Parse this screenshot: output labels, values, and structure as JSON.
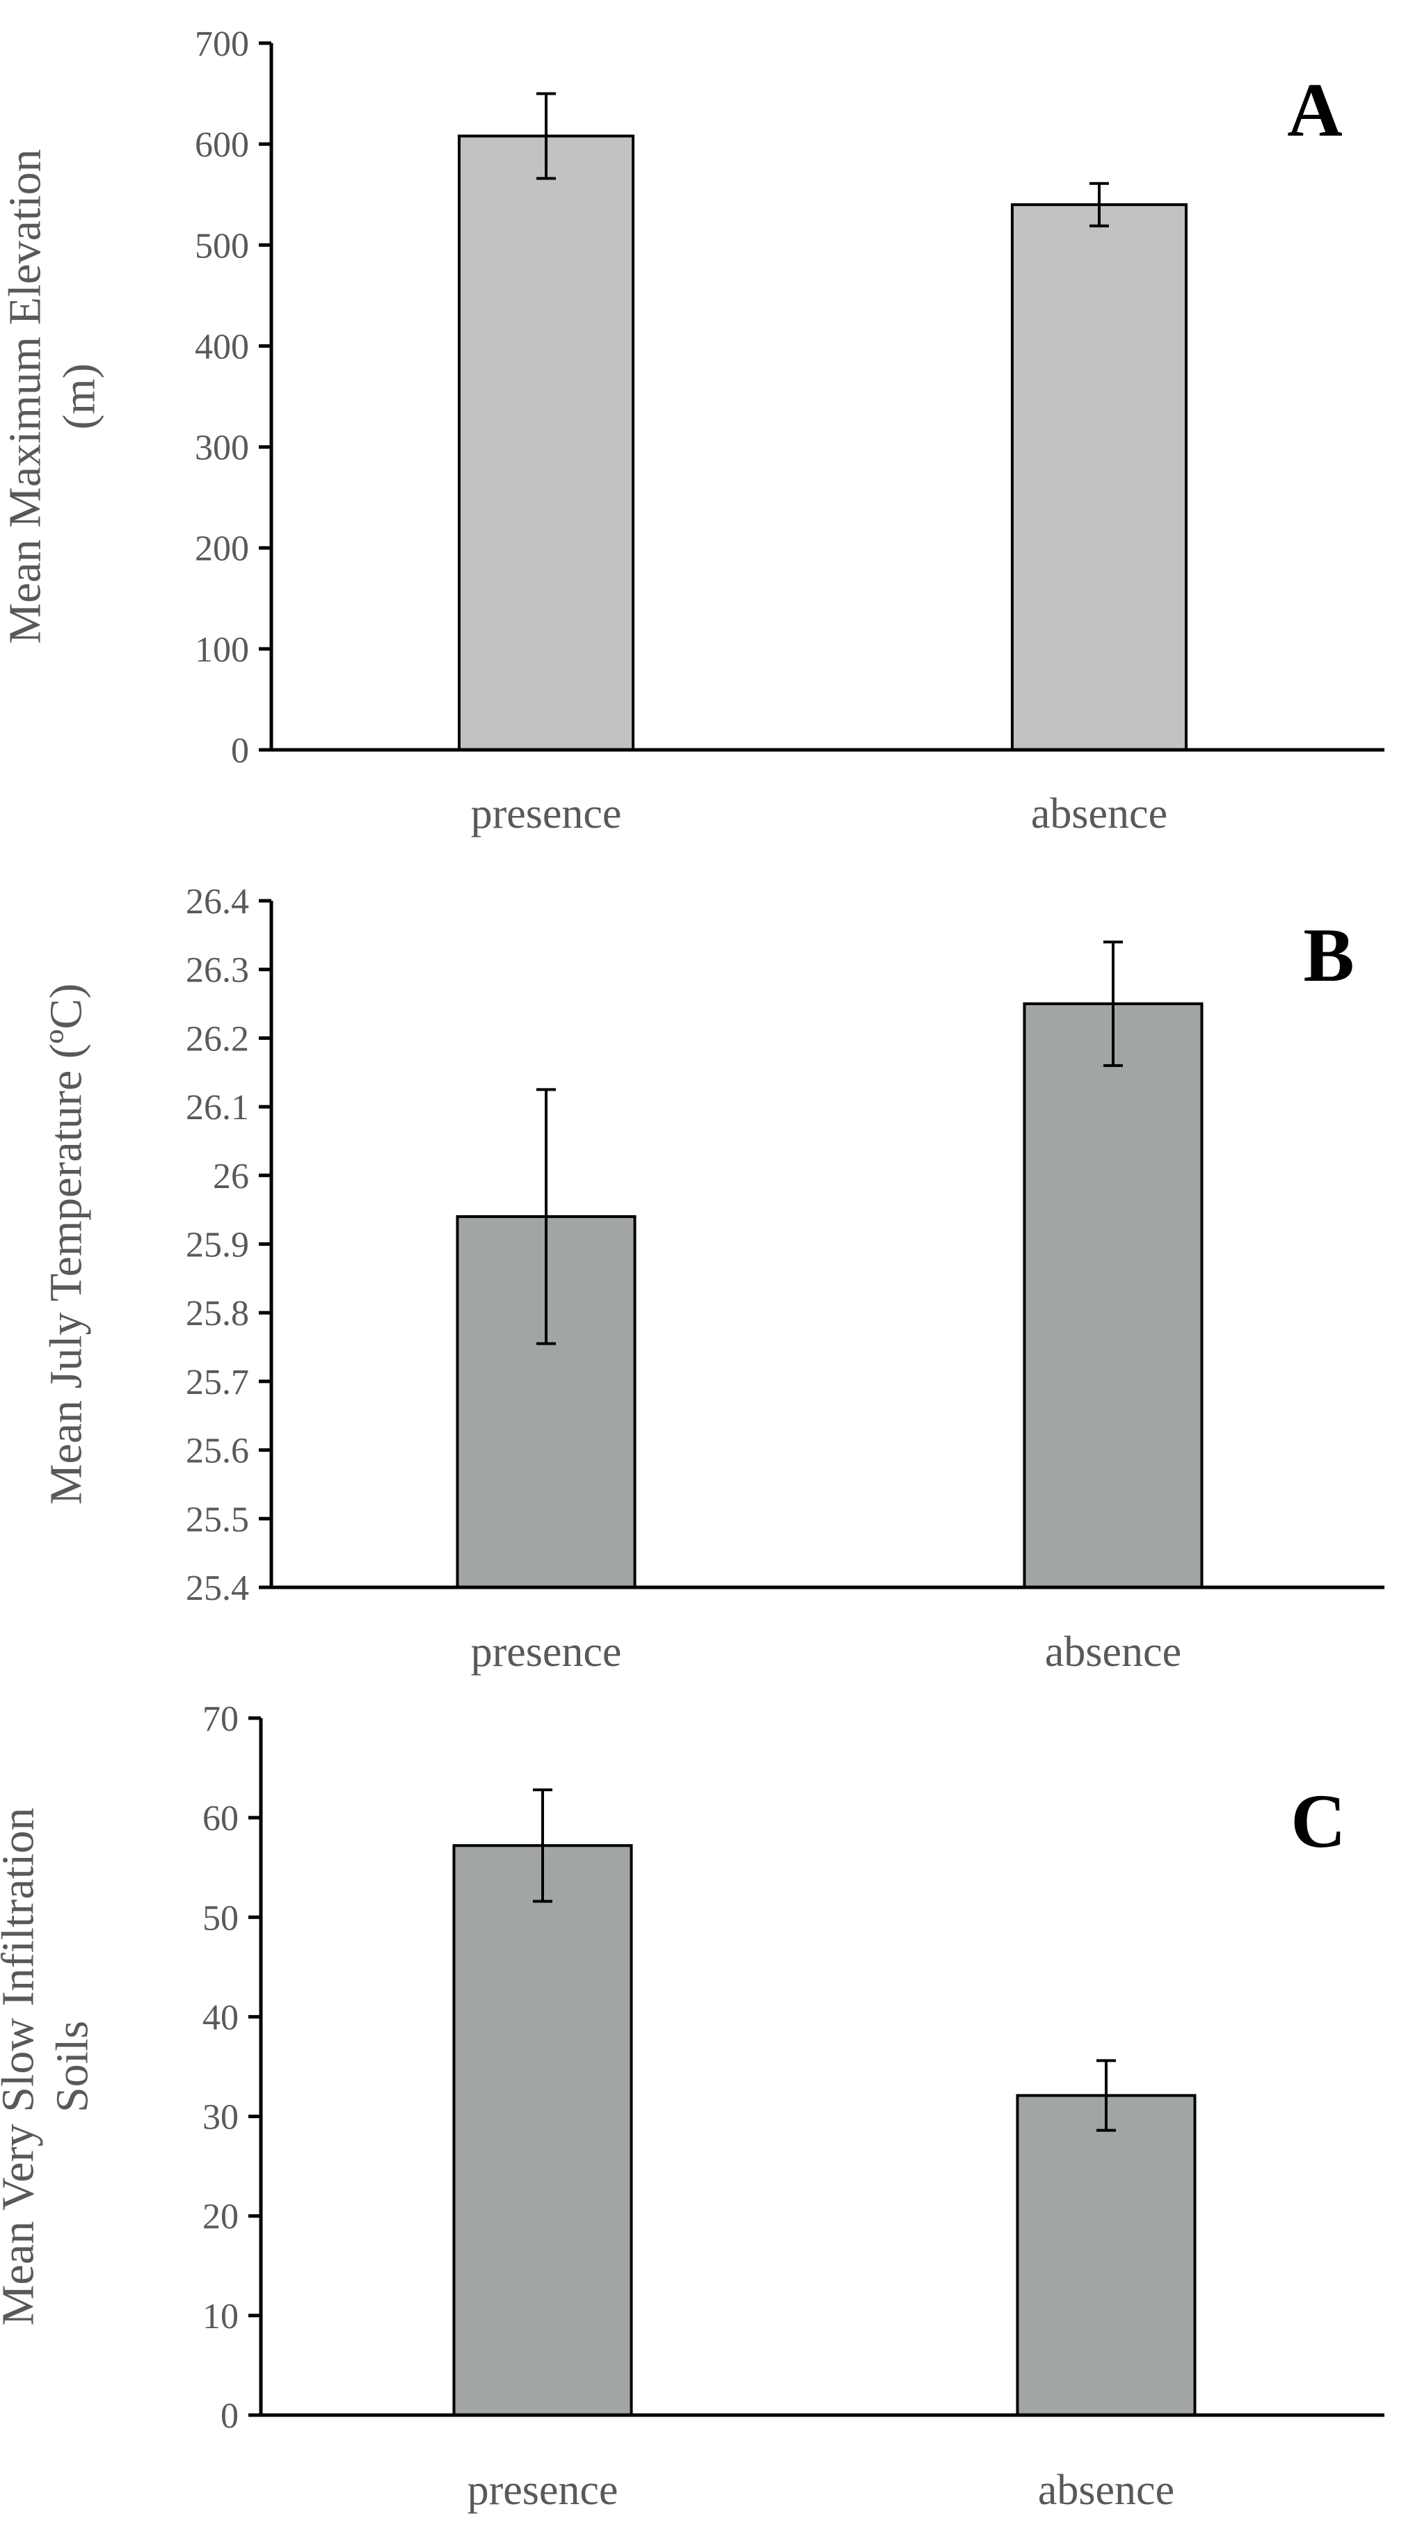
{
  "colors": {
    "bar_A": "#c0c3bf",
    "bar_BC": "#a2a6a2",
    "axis": "#000000",
    "text": "#595959"
  },
  "chart_data": [
    {
      "type": "bar",
      "panel": "A",
      "ylabel": [
        "Mean Maximum  Elevation",
        "(m)"
      ],
      "categories": [
        "presence",
        "absence"
      ],
      "values": [
        608,
        540
      ],
      "errors": [
        42,
        21
      ],
      "ylim": [
        0,
        700
      ],
      "yticks": [
        0,
        100,
        200,
        300,
        400,
        500,
        600,
        700
      ],
      "ytick_labels": [
        "0",
        "100",
        "200",
        "300",
        "400",
        "500",
        "600",
        "700"
      ]
    },
    {
      "type": "bar",
      "panel": "B",
      "ylabel": [
        "Mean July Temperature  (ºC)"
      ],
      "categories": [
        "presence",
        "absence"
      ],
      "values": [
        25.94,
        26.25
      ],
      "errors": [
        0.185,
        0.09
      ],
      "ylim": [
        25.4,
        26.4
      ],
      "yticks": [
        25.4,
        25.5,
        25.6,
        25.7,
        25.8,
        25.9,
        26.0,
        26.1,
        26.2,
        26.3,
        26.4
      ],
      "ytick_labels": [
        "25.4",
        "25.5",
        "25.6",
        "25.7",
        "25.8",
        "25.9",
        "26",
        "26.1",
        "26.2",
        "26.3",
        "26.4"
      ]
    },
    {
      "type": "bar",
      "panel": "C",
      "ylabel": [
        "Mean Very Slow Infiltration",
        "Soils"
      ],
      "categories": [
        "presence",
        "absence"
      ],
      "values": [
        57.2,
        32.1
      ],
      "errors": [
        5.6,
        3.5
      ],
      "ylim": [
        0,
        70
      ],
      "yticks": [
        0,
        10,
        20,
        30,
        40,
        50,
        60,
        70
      ],
      "ytick_labels": [
        "0",
        "10",
        "20",
        "30",
        "40",
        "50",
        "60",
        "70"
      ]
    }
  ]
}
